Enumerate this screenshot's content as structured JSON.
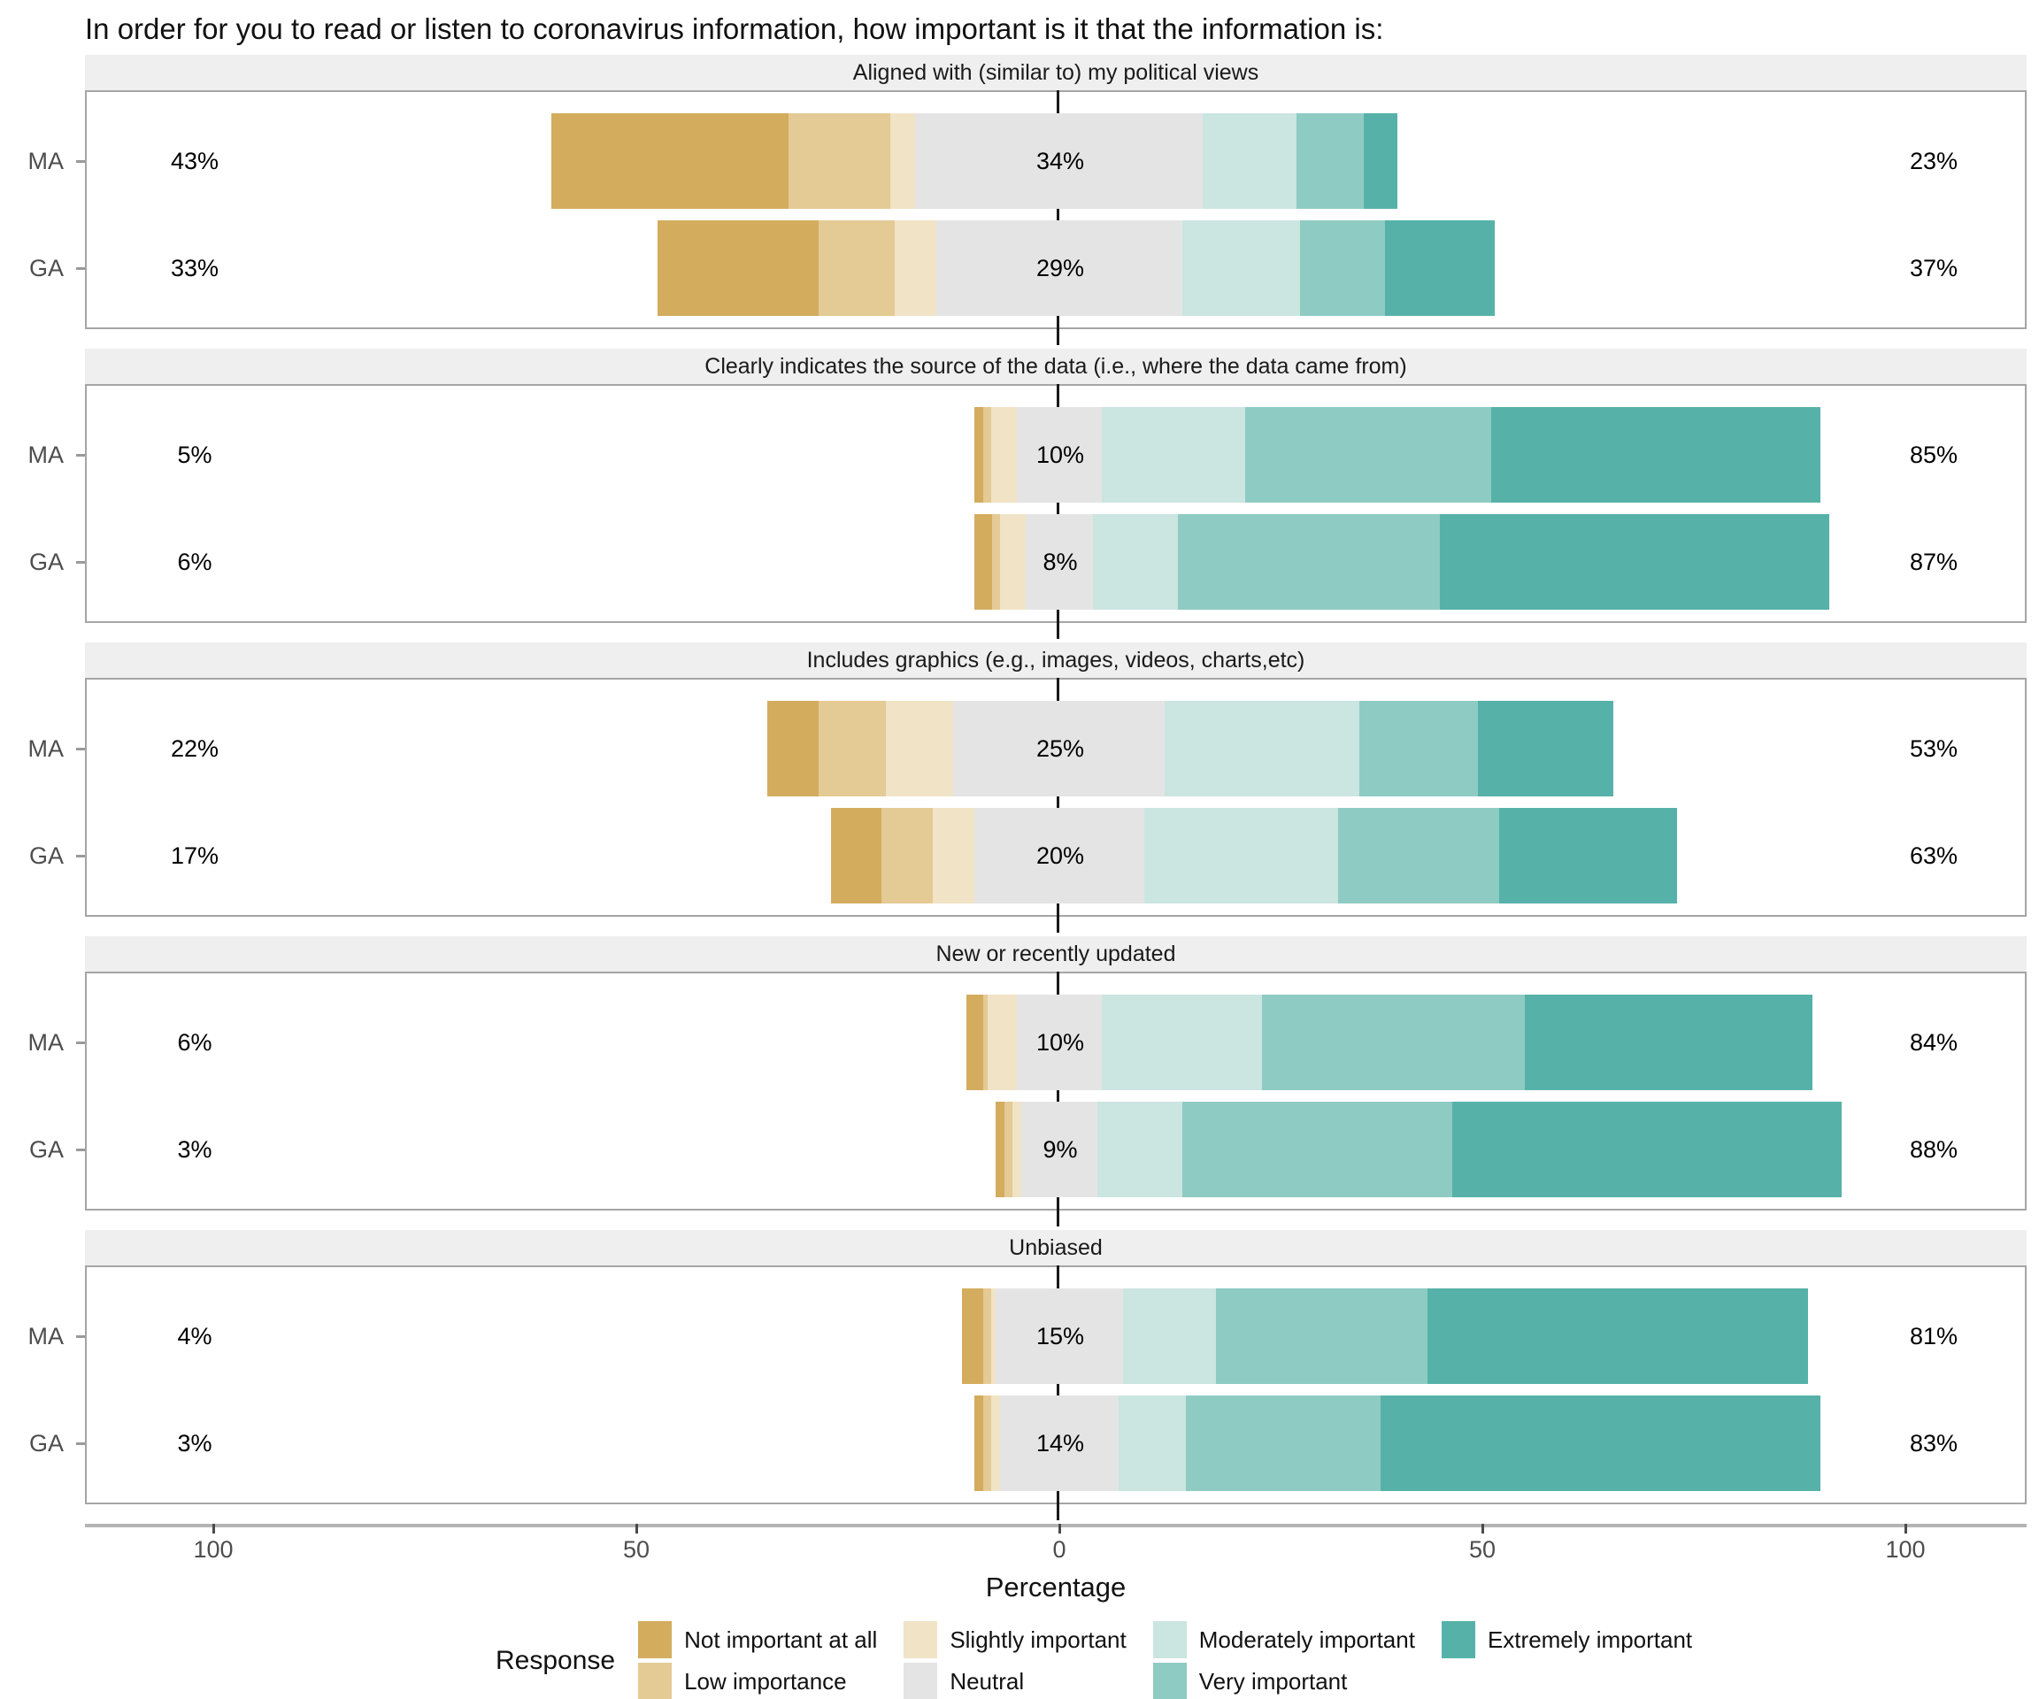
{
  "title": "In order for you to read or listen to coronavirus information, how important is it that the information is:",
  "x_axis": {
    "label": "Percentage",
    "tick_labels": [
      "100",
      "50",
      "0",
      "50",
      "100"
    ],
    "tick_values": [
      -100,
      -50,
      0,
      50,
      100
    ]
  },
  "legend": {
    "title": "Response",
    "items": [
      {
        "label": "Not important at all",
        "color": "#d3ac5e"
      },
      {
        "label": "Low importance",
        "color": "#e4ca94"
      },
      {
        "label": "Slightly important",
        "color": "#f1e3c6"
      },
      {
        "label": "Neutral",
        "color": "#e4e4e4"
      },
      {
        "label": "Moderately important",
        "color": "#cbe5e1"
      },
      {
        "label": "Very important",
        "color": "#8ecbc3"
      },
      {
        "label": "Extremely important",
        "color": "#56b2a8"
      }
    ]
  },
  "chart_data": {
    "type": "bar",
    "subtype": "diverging-stacked-likert",
    "orientation": "horizontal",
    "x_unit": "percent",
    "xlim": [
      -115,
      115
    ],
    "zero_split_neutral": true,
    "grid": false,
    "legend_position": "bottom",
    "categories": [
      "Not important at all",
      "Low importance",
      "Slightly important",
      "Neutral",
      "Moderately important",
      "Very important",
      "Extremely important"
    ],
    "groups": [
      "MA",
      "GA"
    ],
    "panels": [
      {
        "title": "Aligned with (similar to) my political views",
        "rows": [
          {
            "group": "MA",
            "values": [
              28,
              12,
              3,
              34,
              11,
              8,
              4
            ],
            "left_total": "43%",
            "neutral_label": "34%",
            "right_total": "23%"
          },
          {
            "group": "GA",
            "values": [
              19,
              9,
              5,
              29,
              14,
              10,
              13
            ],
            "left_total": "33%",
            "neutral_label": "29%",
            "right_total": "37%"
          }
        ]
      },
      {
        "title": "Clearly indicates the source of the data (i.e., where the data came from)",
        "rows": [
          {
            "group": "MA",
            "values": [
              1,
              1,
              3,
              10,
              17,
              29,
              39
            ],
            "left_total": "5%",
            "neutral_label": "10%",
            "right_total": "85%"
          },
          {
            "group": "GA",
            "values": [
              2,
              1,
              3,
              8,
              10,
              31,
              46
            ],
            "left_total": "6%",
            "neutral_label": "8%",
            "right_total": "87%"
          }
        ]
      },
      {
        "title": "Includes graphics (e.g., images, videos, charts,etc)",
        "rows": [
          {
            "group": "MA",
            "values": [
              6,
              8,
              8,
              25,
              23,
              14,
              16
            ],
            "left_total": "22%",
            "neutral_label": "25%",
            "right_total": "53%"
          },
          {
            "group": "GA",
            "values": [
              6,
              6,
              5,
              20,
              23,
              19,
              21
            ],
            "left_total": "17%",
            "neutral_label": "20%",
            "right_total": "63%"
          }
        ]
      },
      {
        "title": "New or recently updated",
        "rows": [
          {
            "group": "MA",
            "values": [
              2,
              0.5,
              3.5,
              10,
              19,
              31,
              34
            ],
            "left_total": "6%",
            "neutral_label": "10%",
            "right_total": "84%"
          },
          {
            "group": "GA",
            "values": [
              1,
              1,
              1,
              9,
              10,
              32,
              46
            ],
            "left_total": "3%",
            "neutral_label": "9%",
            "right_total": "88%"
          }
        ]
      },
      {
        "title": "Unbiased",
        "rows": [
          {
            "group": "MA",
            "values": [
              2.5,
              1,
              0.5,
              15,
              11,
              25,
              45
            ],
            "left_total": "4%",
            "neutral_label": "15%",
            "right_total": "81%"
          },
          {
            "group": "GA",
            "values": [
              1,
              1,
              1,
              14,
              8,
              23,
              52
            ],
            "left_total": "3%",
            "neutral_label": "14%",
            "right_total": "83%"
          }
        ]
      }
    ]
  }
}
